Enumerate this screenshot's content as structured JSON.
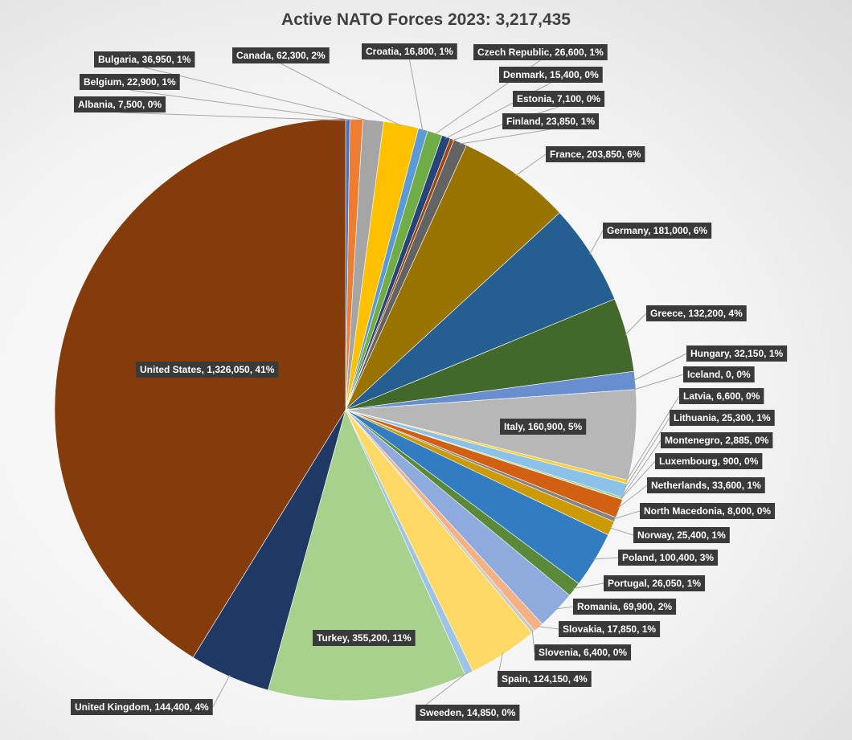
{
  "chart_data": {
    "type": "pie",
    "title": "Active NATO Forces 2023: 3,217,435",
    "slices": [
      {
        "label": "Albania",
        "value": 7500,
        "pct": "0%",
        "color": "#4472c4"
      },
      {
        "label": "Belgium",
        "value": 22900,
        "pct": "1%",
        "color": "#ed7d31"
      },
      {
        "label": "Bulgaria",
        "value": 36950,
        "pct": "1%",
        "color": "#a5a5a5"
      },
      {
        "label": "Canada",
        "value": 62300,
        "pct": "2%",
        "color": "#ffc000"
      },
      {
        "label": "Croatia",
        "value": 16800,
        "pct": "1%",
        "color": "#5b9bd5"
      },
      {
        "label": "Czech Republic",
        "value": 26600,
        "pct": "1%",
        "color": "#70ad47"
      },
      {
        "label": "Denmark",
        "value": 15400,
        "pct": "0%",
        "color": "#264478"
      },
      {
        "label": "Estonia",
        "value": 7100,
        "pct": "0%",
        "color": "#9e480e"
      },
      {
        "label": "Finland",
        "value": 23850,
        "pct": "1%",
        "color": "#636363"
      },
      {
        "label": "France",
        "value": 203850,
        "pct": "6%",
        "color": "#997300"
      },
      {
        "label": "Germany",
        "value": 181000,
        "pct": "6%",
        "color": "#255e91"
      },
      {
        "label": "Greece",
        "value": 132200,
        "pct": "4%",
        "color": "#43682b"
      },
      {
        "label": "Hungary",
        "value": 32150,
        "pct": "1%",
        "color": "#698ed0"
      },
      {
        "label": "Iceland",
        "value": 0,
        "pct": "0%",
        "color": "#f1975a"
      },
      {
        "label": "Italy",
        "value": 160900,
        "pct": "5%",
        "color": "#b7b7b7"
      },
      {
        "label": "Latvia",
        "value": 6600,
        "pct": "0%",
        "color": "#ffcd33"
      },
      {
        "label": "Lithuania",
        "value": 25300,
        "pct": "1%",
        "color": "#8cc2e8"
      },
      {
        "label": "Montenegro",
        "value": 2885,
        "pct": "0%",
        "color": "#8cc168"
      },
      {
        "label": "Luxembourg",
        "value": 900,
        "pct": "0%",
        "color": "#335aa1"
      },
      {
        "label": "Netherlands",
        "value": 33600,
        "pct": "1%",
        "color": "#d26012"
      },
      {
        "label": "North Macedonia",
        "value": 8000,
        "pct": "0%",
        "color": "#848484"
      },
      {
        "label": "Norway",
        "value": 25400,
        "pct": "1%",
        "color": "#cc9a06"
      },
      {
        "label": "Poland",
        "value": 100400,
        "pct": "3%",
        "color": "#327dc2"
      },
      {
        "label": "Portugal",
        "value": 26050,
        "pct": "1%",
        "color": "#5a8a39"
      },
      {
        "label": "Romania",
        "value": 69900,
        "pct": "2%",
        "color": "#8faadc"
      },
      {
        "label": "Slovakia",
        "value": 17850,
        "pct": "1%",
        "color": "#f4b183"
      },
      {
        "label": "Slovenia",
        "value": 6400,
        "pct": "0%",
        "color": "#c9c9c9"
      },
      {
        "label": "Spain",
        "value": 124150,
        "pct": "4%",
        "color": "#ffd966"
      },
      {
        "label": "Sweeden",
        "value": 14850,
        "pct": "0%",
        "color": "#9dc3e6"
      },
      {
        "label": "Turkey",
        "value": 355200,
        "pct": "11%",
        "color": "#a9d18e"
      },
      {
        "label": "United Kingdom",
        "value": 144400,
        "pct": "4%",
        "color": "#203864"
      },
      {
        "label": "United States",
        "value": 1326050,
        "pct": "41%",
        "color": "#843c0c"
      }
    ]
  }
}
